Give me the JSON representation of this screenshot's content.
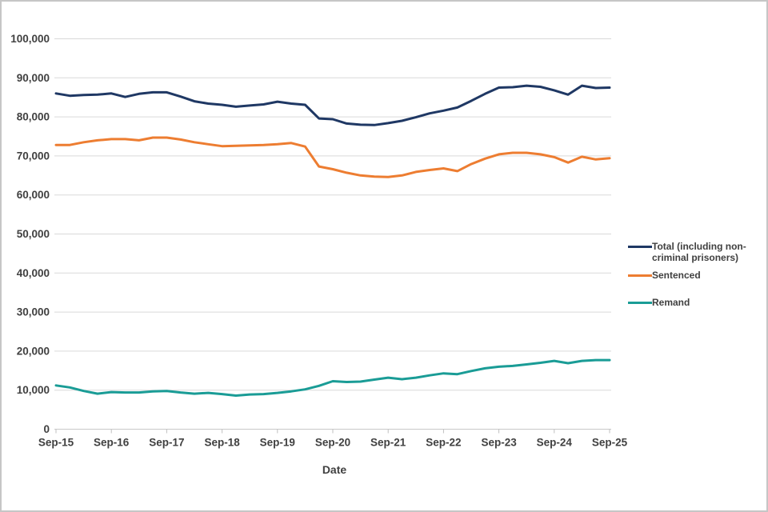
{
  "chart_data": {
    "type": "line",
    "title": "",
    "xlabel": "Date",
    "ylabel": "",
    "ylim": [
      0,
      100000
    ],
    "ytick_step": 10000,
    "grid": true,
    "legend_position": "right",
    "xtick_labels": [
      "Sep-15",
      "Sep-16",
      "Sep-17",
      "Sep-18",
      "Sep-19",
      "Sep-20",
      "Sep-21",
      "Sep-22",
      "Sep-23",
      "Sep-24",
      "Sep-25"
    ],
    "x_categories": [
      "Sep-15",
      "Dec-15",
      "Mar-16",
      "Jun-16",
      "Sep-16",
      "Dec-16",
      "Mar-17",
      "Jun-17",
      "Sep-17",
      "Dec-17",
      "Mar-18",
      "Jun-18",
      "Sep-18",
      "Dec-18",
      "Mar-19",
      "Jun-19",
      "Sep-19",
      "Dec-19",
      "Mar-20",
      "Jun-20",
      "Sep-20",
      "Dec-20",
      "Mar-21",
      "Jun-21",
      "Sep-21",
      "Dec-21",
      "Mar-22",
      "Jun-22",
      "Sep-22",
      "Dec-22",
      "Mar-23",
      "Jun-23",
      "Sep-23",
      "Dec-23",
      "Mar-24",
      "Jun-24",
      "Sep-24",
      "Dec-24",
      "Mar-25",
      "Jun-25",
      "Sep-25"
    ],
    "series": [
      {
        "name": "Total (including non-criminal prisoners)",
        "color": "#1f3864",
        "values": [
          86000,
          85400,
          85600,
          85700,
          86000,
          85100,
          85900,
          86300,
          86300,
          85200,
          84000,
          83400,
          83100,
          82600,
          82900,
          83200,
          83900,
          83400,
          83100,
          79600,
          79400,
          78300,
          78000,
          77900,
          78400,
          79000,
          79900,
          80900,
          81600,
          82400,
          84100,
          85900,
          87500,
          87600,
          88000,
          87700,
          86800,
          85700,
          88000,
          87400,
          87500
        ]
      },
      {
        "name": "Sentenced",
        "color": "#ed7d31",
        "values": [
          72800,
          72800,
          73500,
          74000,
          74300,
          74300,
          74000,
          74700,
          74700,
          74200,
          73500,
          73000,
          72500,
          72600,
          72700,
          72800,
          73000,
          73300,
          72400,
          67300,
          66600,
          65700,
          65000,
          64700,
          64600,
          65000,
          65900,
          66400,
          66800,
          66100,
          67900,
          69300,
          70400,
          70800,
          70800,
          70400,
          69700,
          68300,
          69800,
          69100,
          69400
        ]
      },
      {
        "name": "Remand",
        "color": "#1a9c96",
        "values": [
          11200,
          10700,
          9800,
          9100,
          9500,
          9400,
          9400,
          9700,
          9800,
          9400,
          9100,
          9300,
          9000,
          8600,
          8900,
          9000,
          9300,
          9700,
          10200,
          11100,
          12300,
          12100,
          12200,
          12700,
          13200,
          12800,
          13200,
          13800,
          14300,
          14100,
          14900,
          15600,
          16000,
          16200,
          16600,
          17000,
          17500,
          16900,
          17500,
          17700,
          17700
        ]
      }
    ],
    "style": {
      "gridline_color": "#d9d9d9",
      "axis_line_color": "#c9c9c9",
      "tick_color": "#bfbfbf",
      "label_color": "#404040"
    }
  }
}
